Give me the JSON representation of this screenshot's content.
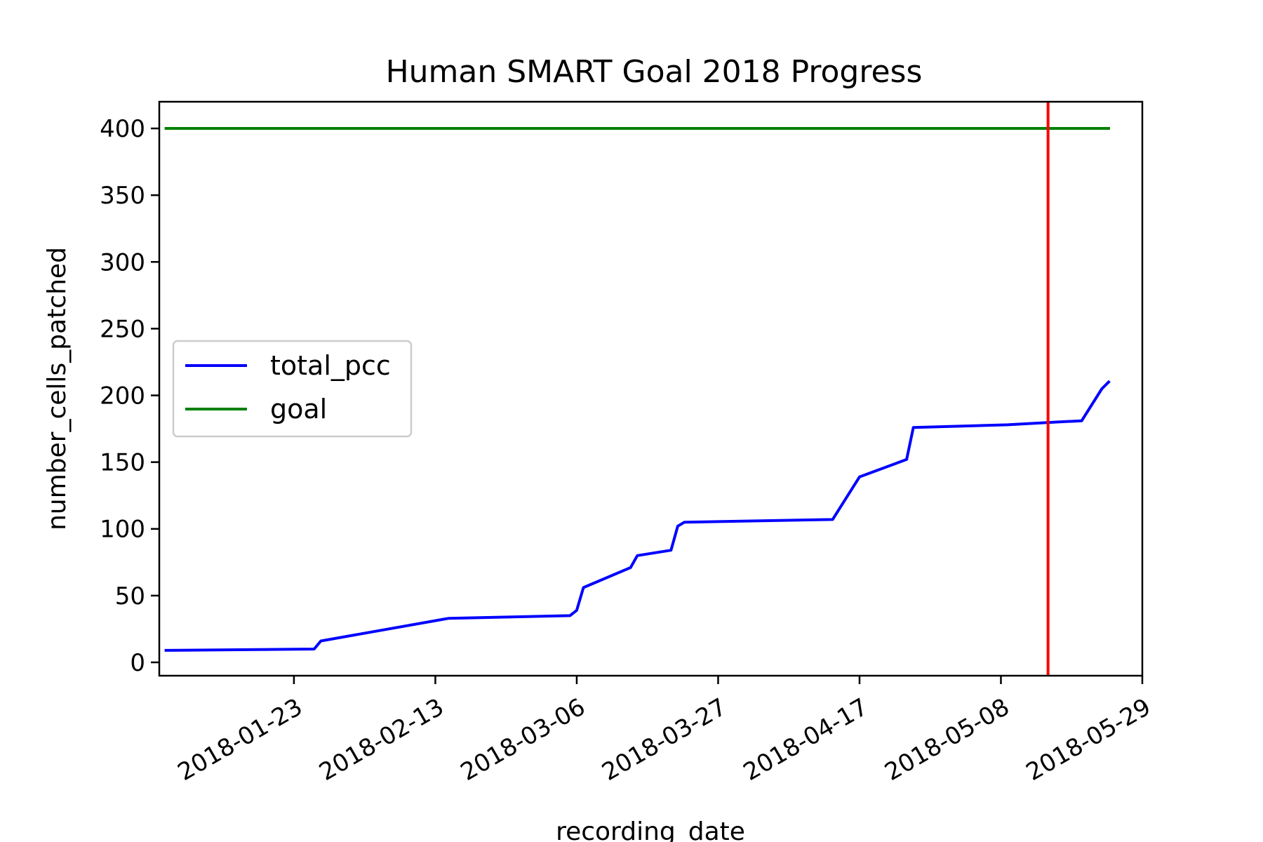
{
  "chart_data": {
    "type": "line",
    "title": "Human SMART Goal 2018 Progress",
    "xlabel": "recording_date",
    "ylabel": "number_cells_patched",
    "x_ticks": [
      "2018-01-23",
      "2018-02-13",
      "2018-03-06",
      "2018-03-27",
      "2018-04-17",
      "2018-05-08",
      "2018-05-29"
    ],
    "y_ticks": [
      0,
      50,
      100,
      150,
      200,
      250,
      300,
      350,
      400
    ],
    "xlim": [
      "2018-01-03",
      "2018-05-29"
    ],
    "ylim": [
      -10,
      420
    ],
    "legend_position": "center-left",
    "grid": false,
    "series": [
      {
        "name": "total_pcc",
        "color": "#0000ff",
        "points": [
          [
            "2018-01-04",
            9
          ],
          [
            "2018-01-26",
            10
          ],
          [
            "2018-01-27",
            16
          ],
          [
            "2018-02-15",
            33
          ],
          [
            "2018-03-05",
            35
          ],
          [
            "2018-03-06",
            39
          ],
          [
            "2018-03-07",
            56
          ],
          [
            "2018-03-14",
            71
          ],
          [
            "2018-03-15",
            80
          ],
          [
            "2018-03-20",
            84
          ],
          [
            "2018-03-21",
            102
          ],
          [
            "2018-03-22",
            105
          ],
          [
            "2018-04-13",
            107
          ],
          [
            "2018-04-17",
            139
          ],
          [
            "2018-04-24",
            152
          ],
          [
            "2018-04-25",
            176
          ],
          [
            "2018-05-09",
            178
          ],
          [
            "2018-05-16",
            180
          ],
          [
            "2018-05-20",
            181
          ],
          [
            "2018-05-23",
            205
          ],
          [
            "2018-05-24",
            210
          ]
        ]
      },
      {
        "name": "goal",
        "color": "#008000",
        "points": [
          [
            "2018-01-04",
            400
          ],
          [
            "2018-05-24",
            400
          ]
        ]
      }
    ],
    "vertical_line": {
      "x": "2018-05-15",
      "color": "#ff0000"
    }
  }
}
